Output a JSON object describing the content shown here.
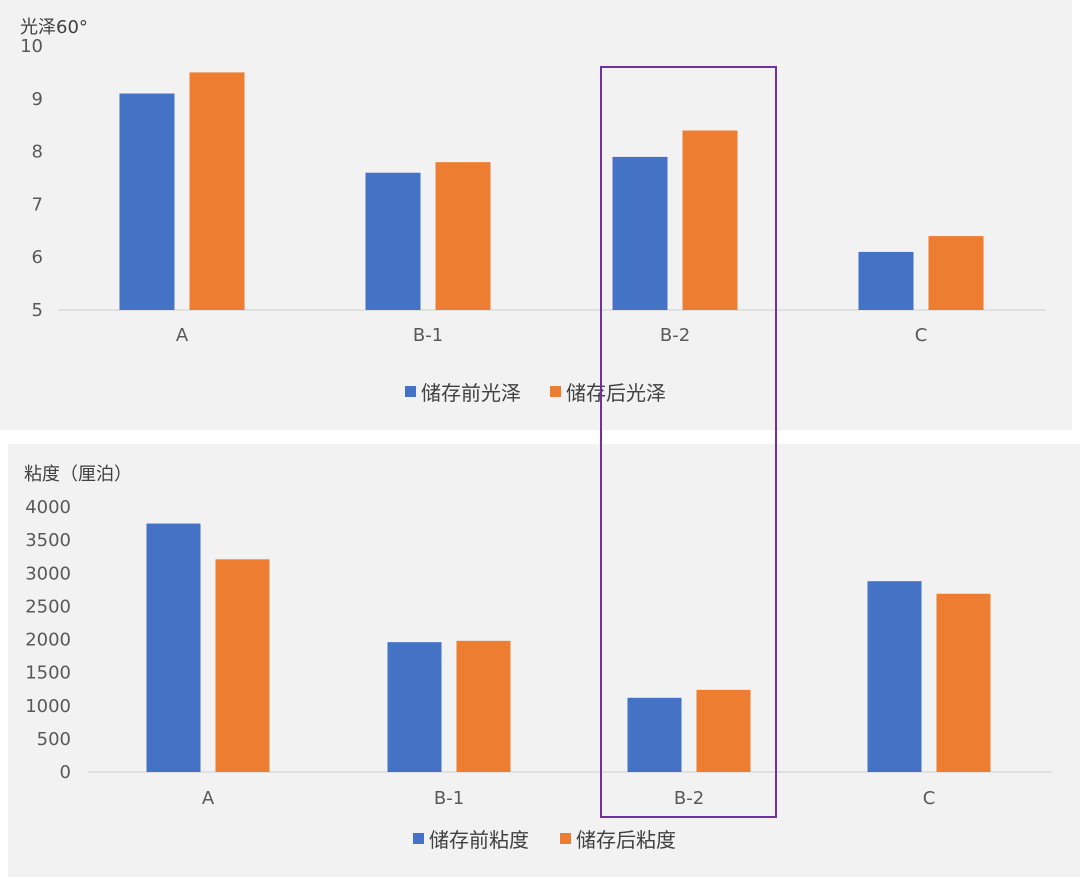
{
  "chart_data": [
    {
      "type": "bar",
      "ylabel": "光泽60°",
      "categories": [
        "A",
        "B-1",
        "B-2",
        "C"
      ],
      "ylim": [
        5,
        10
      ],
      "yticks": [
        5,
        6,
        7,
        8,
        9,
        10
      ],
      "legend_position": "bottom",
      "grid": false,
      "series": [
        {
          "name": "储存前光泽",
          "color": "#4472c4",
          "values": [
            9.1,
            7.6,
            7.9,
            6.1
          ]
        },
        {
          "name": "储存后光泽",
          "color": "#ed7d31",
          "values": [
            9.5,
            7.8,
            8.4,
            6.4
          ]
        }
      ]
    },
    {
      "type": "bar",
      "ylabel": "粘度（厘泊）",
      "categories": [
        "A",
        "B-1",
        "B-2",
        "C"
      ],
      "ylim": [
        0,
        4000
      ],
      "yticks": [
        0,
        500,
        1000,
        1500,
        2000,
        2500,
        3000,
        3500,
        4000
      ],
      "legend_position": "bottom",
      "grid": false,
      "series": [
        {
          "name": "储存前粘度",
          "color": "#4472c4",
          "values": [
            3750,
            1960,
            1120,
            2880
          ]
        },
        {
          "name": "储存后粘度",
          "color": "#ed7d31",
          "values": [
            3210,
            1980,
            1240,
            2690
          ]
        }
      ]
    }
  ],
  "highlight": {
    "category": "B-2",
    "color": "#7030a0"
  }
}
